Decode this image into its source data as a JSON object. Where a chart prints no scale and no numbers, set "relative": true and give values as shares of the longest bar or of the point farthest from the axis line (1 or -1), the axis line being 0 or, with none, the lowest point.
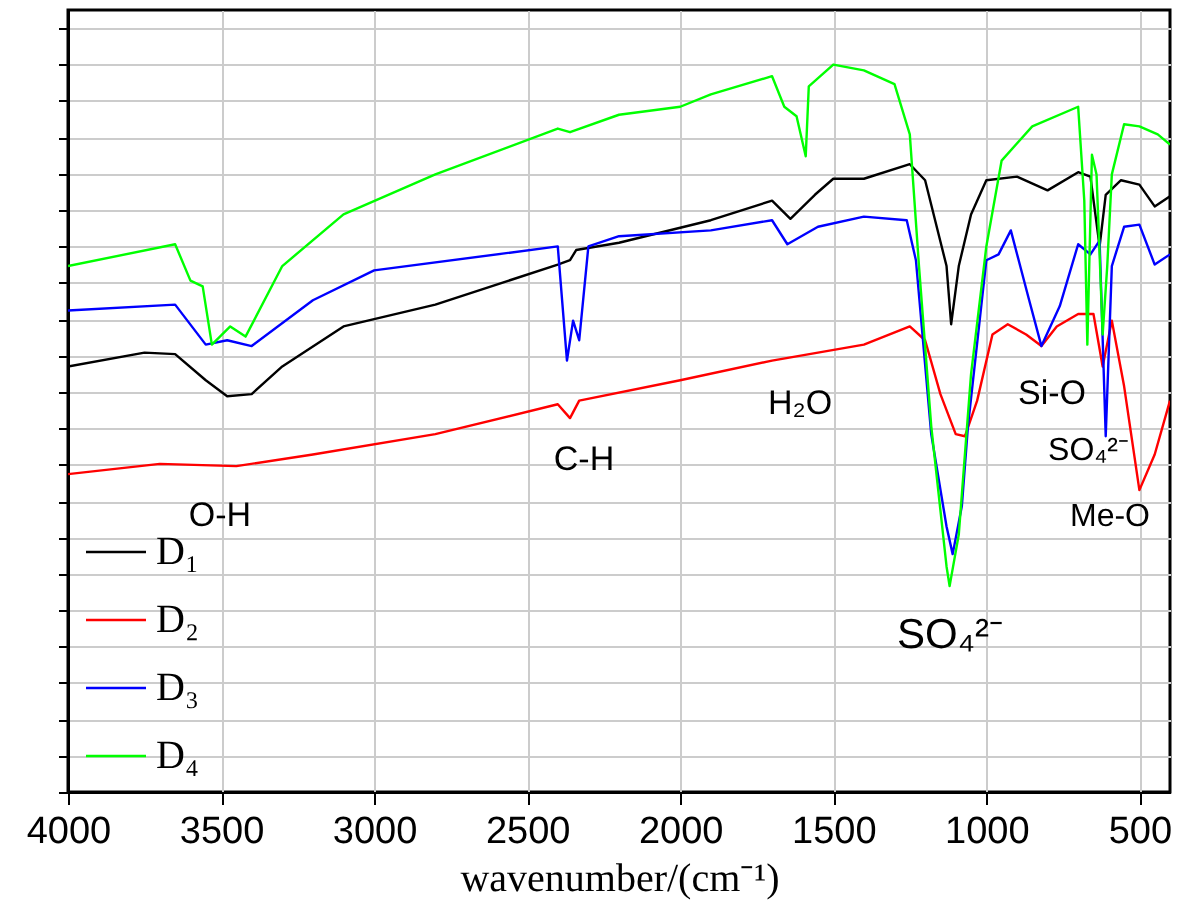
{
  "chart_data": {
    "type": "line",
    "xlabel": "wavenumber/(cm⁻¹)",
    "relative": true,
    "grid": true,
    "legend": "bottom left",
    "tick_labels": "x",
    "xlim": [
      4000,
      400
    ],
    "xticks": [
      4000,
      3500,
      3000,
      2500,
      2000,
      1500,
      1000,
      500
    ],
    "annotations": [
      "O-H",
      "C-H",
      "H₂O",
      "SO₄²⁻",
      "Si-O",
      "SO₄²⁻",
      "Me-O"
    ],
    "series": [
      {
        "name": "D₁",
        "color": "#000000",
        "x": [
          4000,
          3750,
          3650,
          3550,
          3480,
          3400,
          3300,
          3100,
          2800,
          2400,
          2360,
          2340,
          2200,
          1900,
          1700,
          1640,
          1560,
          1500,
          1400,
          1250,
          1200,
          1130,
          1115,
          1090,
          1050,
          1000,
          900,
          800,
          700,
          660,
          630,
          610,
          560,
          500,
          450,
          400
        ],
        "values": [
          0.585,
          0.604,
          0.602,
          0.566,
          0.544,
          0.547,
          0.585,
          0.64,
          0.67,
          0.725,
          0.731,
          0.745,
          0.755,
          0.786,
          0.813,
          0.788,
          0.821,
          0.843,
          0.843,
          0.863,
          0.841,
          0.723,
          0.643,
          0.723,
          0.794,
          0.841,
          0.846,
          0.827,
          0.852,
          0.846,
          0.75,
          0.821,
          0.841,
          0.835,
          0.805,
          0.819
        ]
      },
      {
        "name": "D₂",
        "color": "#ff0000",
        "x": [
          4000,
          3700,
          3450,
          3200,
          2800,
          2400,
          2360,
          2330,
          2000,
          1700,
          1400,
          1250,
          1200,
          1150,
          1100,
          1070,
          1030,
          980,
          930,
          870,
          820,
          770,
          700,
          650,
          620,
          590,
          550,
          500,
          450,
          400
        ],
        "values": [
          0.437,
          0.451,
          0.448,
          0.464,
          0.492,
          0.533,
          0.514,
          0.538,
          0.566,
          0.593,
          0.615,
          0.64,
          0.621,
          0.547,
          0.492,
          0.489,
          0.538,
          0.629,
          0.643,
          0.629,
          0.613,
          0.64,
          0.657,
          0.657,
          0.585,
          0.648,
          0.558,
          0.415,
          0.464,
          0.538
        ]
      },
      {
        "name": "D₃",
        "color": "#0000ff",
        "x": [
          4000,
          3650,
          3550,
          3480,
          3400,
          3200,
          3000,
          2400,
          2370,
          2350,
          2330,
          2300,
          2200,
          1900,
          1700,
          1650,
          1550,
          1400,
          1260,
          1230,
          1180,
          1130,
          1110,
          1080,
          1060,
          1000,
          960,
          920,
          860,
          820,
          760,
          700,
          660,
          630,
          610,
          590,
          550,
          500,
          450,
          400
        ],
        "values": [
          0.662,
          0.67,
          0.615,
          0.621,
          0.613,
          0.676,
          0.717,
          0.75,
          0.593,
          0.648,
          0.621,
          0.75,
          0.764,
          0.772,
          0.786,
          0.753,
          0.777,
          0.791,
          0.786,
          0.731,
          0.492,
          0.365,
          0.327,
          0.393,
          0.503,
          0.731,
          0.739,
          0.772,
          0.676,
          0.613,
          0.668,
          0.753,
          0.739,
          0.758,
          0.489,
          0.723,
          0.777,
          0.78,
          0.725,
          0.739
        ]
      },
      {
        "name": "D₄",
        "color": "#00ff00",
        "x": [
          4000,
          3650,
          3600,
          3560,
          3530,
          3470,
          3420,
          3300,
          3100,
          2800,
          2400,
          2360,
          2200,
          2000,
          1900,
          1700,
          1660,
          1620,
          1590,
          1580,
          1500,
          1400,
          1300,
          1250,
          1220,
          1180,
          1130,
          1120,
          1090,
          1050,
          1000,
          950,
          850,
          700,
          680,
          670,
          655,
          640,
          620,
          605,
          590,
          550,
          500,
          440,
          400
        ],
        "values": [
          0.723,
          0.753,
          0.703,
          0.695,
          0.615,
          0.64,
          0.626,
          0.723,
          0.794,
          0.849,
          0.912,
          0.907,
          0.931,
          0.942,
          0.959,
          0.984,
          0.942,
          0.929,
          0.874,
          0.97,
          1.0,
          0.992,
          0.973,
          0.904,
          0.723,
          0.503,
          0.31,
          0.283,
          0.354,
          0.574,
          0.75,
          0.868,
          0.915,
          0.942,
          0.813,
          0.615,
          0.876,
          0.849,
          0.629,
          0.723,
          0.849,
          0.918,
          0.915,
          0.904,
          0.89
        ]
      }
    ]
  }
}
